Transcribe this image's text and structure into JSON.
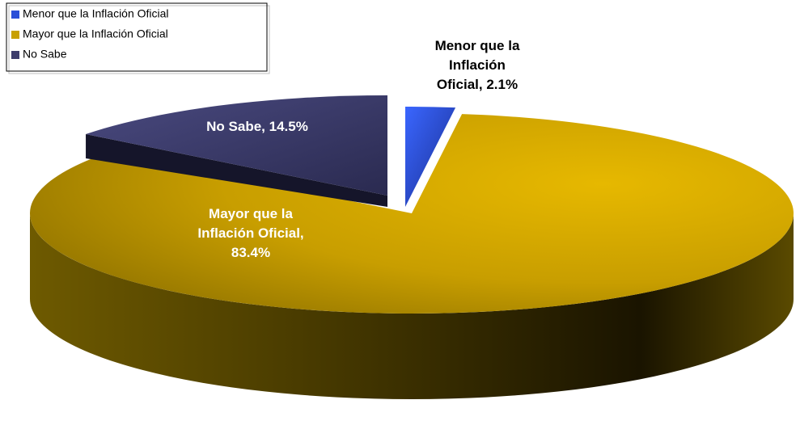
{
  "chart_data": {
    "type": "pie3d",
    "categories": [
      "Menor que la Inflación Oficial",
      "Mayor que la Inflación Oficial",
      "No Sabe"
    ],
    "values": [
      2.1,
      83.4,
      14.5
    ],
    "value_labels": [
      "Menor que la Inflación Oficial, 2.1%",
      "Mayor que la Inflación Oficial, 83.4%",
      "No Sabe, 14.5%"
    ],
    "colors": [
      "#2a4fd8",
      "#c8a000",
      "#3c3c6c"
    ],
    "legend": "top-left"
  }
}
